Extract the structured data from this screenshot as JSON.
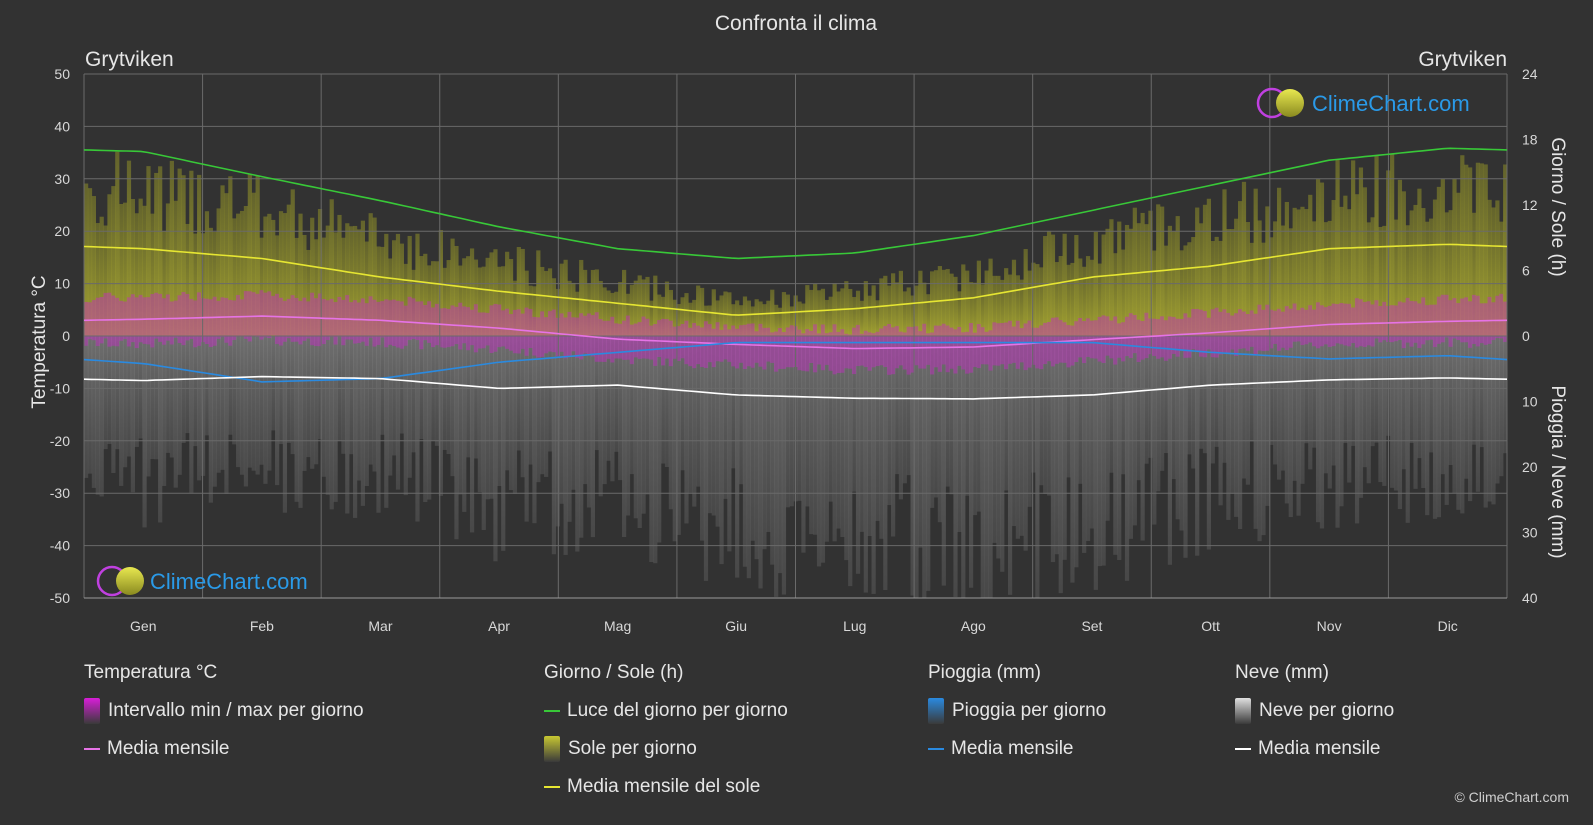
{
  "chart_data": {
    "type": "line",
    "title": "Confronta il clima",
    "location_left": "Grytviken",
    "location_right": "Grytviken",
    "watermark": "ClimeChart.com",
    "months": [
      "Gen",
      "Feb",
      "Mar",
      "Apr",
      "Mag",
      "Giu",
      "Lug",
      "Ago",
      "Set",
      "Ott",
      "Nov",
      "Dic"
    ],
    "y_left": {
      "label": "Temperatura °C",
      "min": -50,
      "max": 50,
      "ticks": [
        50,
        40,
        30,
        20,
        10,
        0,
        -10,
        -20,
        -30,
        -40,
        -50
      ]
    },
    "y_right_top": {
      "label": "Giorno / Sole (h)",
      "min": 0,
      "max": 24,
      "ticks": [
        24,
        18,
        12,
        6,
        0
      ]
    },
    "y_right_bottom": {
      "label": "Pioggia / Neve (mm)",
      "min": 0,
      "max": 40,
      "ticks": [
        10,
        20,
        30,
        40
      ]
    },
    "series": [
      {
        "name": "Luce del giorno per giorno",
        "axis": "hours",
        "color": "#38c838",
        "values": [
          16.9,
          14.6,
          12.4,
          10.0,
          8.0,
          7.1,
          7.6,
          9.2,
          11.5,
          13.8,
          16.1,
          17.2
        ]
      },
      {
        "name": "Media mensile del sole",
        "axis": "hours",
        "color": "#e6e632",
        "values": [
          8.0,
          7.1,
          5.4,
          4.1,
          3.0,
          1.9,
          2.5,
          3.5,
          5.4,
          6.4,
          8.0,
          8.4
        ]
      },
      {
        "name": "Media mensile temperatura",
        "axis": "temp",
        "color": "#e673e6",
        "values": [
          3.2,
          3.8,
          3.0,
          1.5,
          -0.6,
          -1.6,
          -2.4,
          -2.1,
          -0.7,
          0.6,
          2.2,
          2.8
        ]
      },
      {
        "name": "Media mensile pioggia",
        "axis": "precip",
        "color": "#2a8ae0",
        "values": [
          4.2,
          7.0,
          6.5,
          4.0,
          2.5,
          1.0,
          1.0,
          1.0,
          1.0,
          2.5,
          3.5,
          3.0
        ]
      },
      {
        "name": "Media mensile neve",
        "axis": "precip",
        "color": "#ffffff",
        "values": [
          6.8,
          6.2,
          6.5,
          8.0,
          7.5,
          9.0,
          9.5,
          9.6,
          9.0,
          7.5,
          6.7,
          6.4
        ]
      }
    ],
    "temp_range": {
      "max": [
        7.5,
        7.8,
        7.0,
        5.2,
        3.2,
        1.8,
        1.2,
        1.6,
        3.0,
        4.5,
        6.0,
        7.0
      ],
      "min": [
        -1.5,
        -0.8,
        -1.2,
        -2.5,
        -4.5,
        -5.5,
        -6.5,
        -6.3,
        -4.8,
        -3.2,
        -1.6,
        -1.2
      ]
    }
  },
  "legend": {
    "groups": [
      {
        "title": "Temperatura °C",
        "items": [
          {
            "label": "Intervallo min / max per giorno",
            "kind": "box",
            "color": "#d81ed8"
          },
          {
            "label": "Media mensile",
            "kind": "line",
            "color": "#e673e6"
          }
        ]
      },
      {
        "title": "Giorno / Sole (h)",
        "items": [
          {
            "label": "Luce del giorno per giorno",
            "kind": "line",
            "color": "#38c838"
          },
          {
            "label": "Sole per giorno",
            "kind": "box",
            "color": "#c8c832"
          },
          {
            "label": "Media mensile del sole",
            "kind": "line",
            "color": "#e6e632"
          }
        ]
      },
      {
        "title": "Pioggia (mm)",
        "items": [
          {
            "label": "Pioggia per giorno",
            "kind": "box",
            "color": "#2a8ae0"
          },
          {
            "label": "Media mensile",
            "kind": "line",
            "color": "#2a8ae0"
          }
        ]
      },
      {
        "title": "Neve (mm)",
        "items": [
          {
            "label": "Neve per giorno",
            "kind": "box",
            "color": "#e0e0e0"
          },
          {
            "label": "Media mensile",
            "kind": "line",
            "color": "#ffffff"
          }
        ]
      }
    ]
  },
  "copyright": "© ClimeChart.com"
}
